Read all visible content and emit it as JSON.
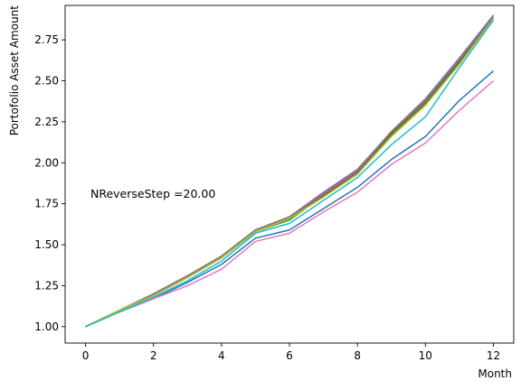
{
  "chart_data": {
    "type": "line",
    "title": "",
    "xlabel": "Month",
    "ylabel": "Portofolio Asset Amount",
    "annotation": "NReverseStep =20.00",
    "xlim": [
      -0.6,
      12.6
    ],
    "ylim": [
      0.9,
      2.96
    ],
    "x_ticks": [
      0,
      2,
      4,
      6,
      8,
      10,
      12
    ],
    "y_ticks": [
      1.0,
      1.25,
      1.5,
      1.75,
      2.0,
      2.25,
      2.5,
      2.75
    ],
    "grid": false,
    "x": [
      0,
      1,
      2,
      3,
      4,
      5,
      6,
      7,
      8,
      9,
      10,
      11,
      12
    ],
    "series": [
      {
        "color": "#1f77b4",
        "values": [
          1.0,
          1.09,
          1.17,
          1.27,
          1.38,
          1.54,
          1.59,
          1.72,
          1.85,
          2.02,
          2.16,
          2.38,
          2.56
        ]
      },
      {
        "color": "#ff7f0e",
        "values": [
          1.0,
          1.1,
          1.2,
          1.31,
          1.43,
          1.59,
          1.67,
          1.82,
          1.95,
          2.19,
          2.39,
          2.63,
          2.9
        ]
      },
      {
        "color": "#2ca02c",
        "values": [
          1.0,
          1.1,
          1.19,
          1.3,
          1.42,
          1.58,
          1.65,
          1.8,
          1.93,
          2.17,
          2.36,
          2.61,
          2.88
        ]
      },
      {
        "color": "#d62728",
        "values": [
          1.0,
          1.1,
          1.2,
          1.31,
          1.43,
          1.59,
          1.67,
          1.81,
          1.95,
          2.19,
          2.38,
          2.63,
          2.89
        ]
      },
      {
        "color": "#9467bd",
        "values": [
          1.0,
          1.1,
          1.2,
          1.31,
          1.43,
          1.59,
          1.67,
          1.82,
          1.96,
          2.19,
          2.39,
          2.64,
          2.9
        ]
      },
      {
        "color": "#8c564b",
        "values": [
          1.0,
          1.1,
          1.19,
          1.3,
          1.42,
          1.58,
          1.66,
          1.8,
          1.94,
          2.18,
          2.37,
          2.62,
          2.89
        ]
      },
      {
        "color": "#e377c2",
        "values": [
          1.0,
          1.09,
          1.17,
          1.25,
          1.35,
          1.52,
          1.57,
          1.7,
          1.82,
          1.99,
          2.12,
          2.32,
          2.5
        ]
      },
      {
        "color": "#7f7f7f",
        "values": [
          1.0,
          1.1,
          1.2,
          1.31,
          1.43,
          1.59,
          1.67,
          1.81,
          1.95,
          2.19,
          2.38,
          2.63,
          2.89
        ]
      },
      {
        "color": "#bcbd22",
        "values": [
          1.0,
          1.1,
          1.19,
          1.3,
          1.42,
          1.58,
          1.66,
          1.79,
          1.93,
          2.16,
          2.35,
          2.6,
          2.88
        ]
      },
      {
        "color": "#17becf",
        "values": [
          1.0,
          1.09,
          1.18,
          1.28,
          1.4,
          1.57,
          1.63,
          1.77,
          1.91,
          2.11,
          2.28,
          2.58,
          2.87
        ]
      }
    ]
  }
}
